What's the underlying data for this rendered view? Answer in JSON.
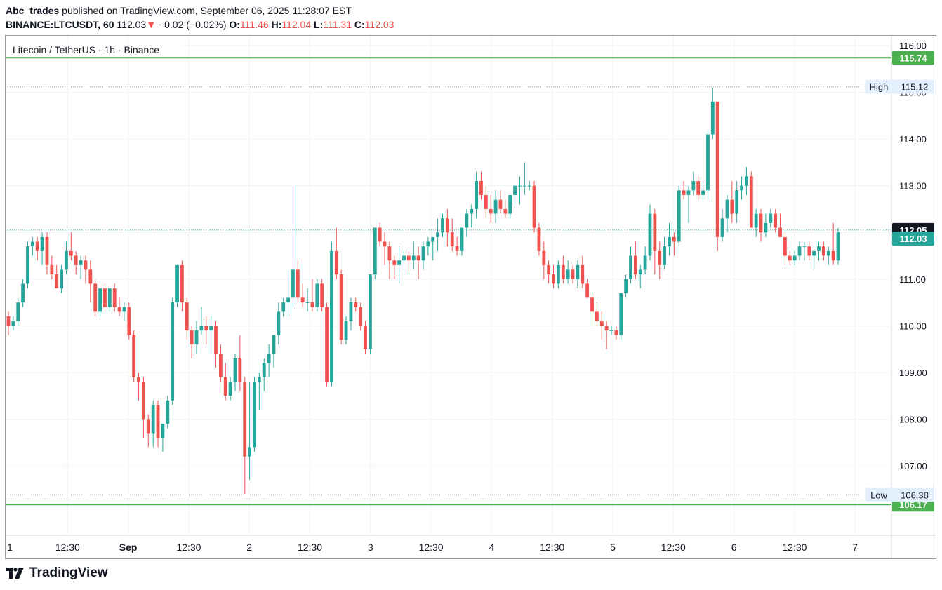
{
  "header": {
    "user": "Abc_trades",
    "published_text": "published on TradingView.com, September 06, 2025 11:28:07 EST",
    "symbol": "BINANCE:LTCUSDT, 60",
    "last": "112.03",
    "arrow": "▼",
    "change": "−0.02 (−0.02%)",
    "o_label": "O:",
    "o_value": "111.46",
    "h_label": "H:",
    "h_value": "112.04",
    "l_label": "L:",
    "l_value": "111.31",
    "c_label": "C:",
    "c_value": "112.03"
  },
  "footer": {
    "brand": "TradingView"
  },
  "colors": {
    "up": "#26a69a",
    "down": "#ef5350",
    "level": "#4caf50",
    "current": "#131722",
    "high_low_bg": "#e3effd"
  },
  "chart_data": {
    "type": "candlestick",
    "title": "Litecoin / TetherUS · 1h · Binance",
    "ylim": [
      106.0,
      116.2
    ],
    "y_ticks": [
      "116.00",
      "115.00",
      "114.00",
      "113.00",
      "112.00",
      "111.00",
      "110.00",
      "109.00",
      "108.00",
      "107.00"
    ],
    "x_ticks": [
      "1",
      "12:30",
      "Sep",
      "12:30",
      "2",
      "12:30",
      "3",
      "12:30",
      "4",
      "12:30",
      "5",
      "12:30",
      "6",
      "12:30",
      "7"
    ],
    "levels": [
      {
        "name": "resistance",
        "value": 115.74,
        "label": "115.74"
      },
      {
        "name": "support",
        "value": 106.17,
        "label": "106.17"
      }
    ],
    "high": {
      "label": "High",
      "value": 115.12,
      "text": "115.12"
    },
    "low": {
      "label": "Low",
      "value": 106.38,
      "text": "106.38"
    },
    "current_price": {
      "value": 112.05,
      "text": "112.05"
    },
    "last_price": {
      "value": 112.03,
      "text": "112.03"
    },
    "candles": [
      [
        110.2,
        110.3,
        109.8,
        110.0
      ],
      [
        110.0,
        110.2,
        109.9,
        110.1
      ],
      [
        110.1,
        110.6,
        110.0,
        110.5
      ],
      [
        110.5,
        111.0,
        110.4,
        110.9
      ],
      [
        110.9,
        111.8,
        110.8,
        111.7
      ],
      [
        111.7,
        111.9,
        111.5,
        111.8
      ],
      [
        111.8,
        111.9,
        111.4,
        111.6
      ],
      [
        111.6,
        112.0,
        111.3,
        111.9
      ],
      [
        111.9,
        112.0,
        111.1,
        111.3
      ],
      [
        111.3,
        111.5,
        111.0,
        111.1
      ],
      [
        111.1,
        111.3,
        110.8,
        110.8
      ],
      [
        110.8,
        111.3,
        110.7,
        111.2
      ],
      [
        111.2,
        111.8,
        111.1,
        111.6
      ],
      [
        111.6,
        112.0,
        111.4,
        111.5
      ],
      [
        111.5,
        111.6,
        111.1,
        111.3
      ],
      [
        111.3,
        111.5,
        111.0,
        111.4
      ],
      [
        111.4,
        111.5,
        110.9,
        111.2
      ],
      [
        111.2,
        111.4,
        110.5,
        110.9
      ],
      [
        110.9,
        111.0,
        110.2,
        110.3
      ],
      [
        110.3,
        110.8,
        110.2,
        110.8
      ],
      [
        110.8,
        110.9,
        110.3,
        110.4
      ],
      [
        110.4,
        110.8,
        110.3,
        110.8
      ],
      [
        110.8,
        110.9,
        110.3,
        110.4
      ],
      [
        110.4,
        110.6,
        110.2,
        110.3
      ],
      [
        110.3,
        110.5,
        110.1,
        110.4
      ],
      [
        110.4,
        110.5,
        109.7,
        109.8
      ],
      [
        109.8,
        109.9,
        108.8,
        108.9
      ],
      [
        108.9,
        109.0,
        108.4,
        108.8
      ],
      [
        108.8,
        108.9,
        107.6,
        108.0
      ],
      [
        108.0,
        108.1,
        107.4,
        107.7
      ],
      [
        107.7,
        108.4,
        107.4,
        108.3
      ],
      [
        108.3,
        108.4,
        107.4,
        107.6
      ],
      [
        107.6,
        107.8,
        107.3,
        107.9
      ],
      [
        107.9,
        108.5,
        107.8,
        108.4
      ],
      [
        108.4,
        110.6,
        108.3,
        110.5
      ],
      [
        110.5,
        111.3,
        110.4,
        111.3
      ],
      [
        111.3,
        111.4,
        110.3,
        110.5
      ],
      [
        110.5,
        110.6,
        109.7,
        109.9
      ],
      [
        109.9,
        110.0,
        109.3,
        109.6
      ],
      [
        109.6,
        110.1,
        109.4,
        109.9
      ],
      [
        109.9,
        110.4,
        109.8,
        110.0
      ],
      [
        110.0,
        110.2,
        109.6,
        109.9
      ],
      [
        109.9,
        110.2,
        109.4,
        110.0
      ],
      [
        110.0,
        110.1,
        109.1,
        109.4
      ],
      [
        109.4,
        109.6,
        108.8,
        108.9
      ],
      [
        108.9,
        109.2,
        108.4,
        108.5
      ],
      [
        108.5,
        108.9,
        108.4,
        108.8
      ],
      [
        108.8,
        109.4,
        108.6,
        109.3
      ],
      [
        109.3,
        109.8,
        108.6,
        108.8
      ],
      [
        108.8,
        108.9,
        106.4,
        107.2
      ],
      [
        107.2,
        108.8,
        106.7,
        107.4
      ],
      [
        107.4,
        108.9,
        107.3,
        108.8
      ],
      [
        108.8,
        109.0,
        108.2,
        108.9
      ],
      [
        108.9,
        109.3,
        108.6,
        109.2
      ],
      [
        109.2,
        109.6,
        108.9,
        109.4
      ],
      [
        109.4,
        109.8,
        109.1,
        109.8
      ],
      [
        109.8,
        110.5,
        109.6,
        110.3
      ],
      [
        110.3,
        110.6,
        110.2,
        110.5
      ],
      [
        110.5,
        111.2,
        110.2,
        110.6
      ],
      [
        110.6,
        113.0,
        110.4,
        111.2
      ],
      [
        111.2,
        111.4,
        110.5,
        110.6
      ],
      [
        110.6,
        110.9,
        110.4,
        110.5
      ],
      [
        110.5,
        110.8,
        110.3,
        110.5
      ],
      [
        110.5,
        111.0,
        110.3,
        110.4
      ],
      [
        110.4,
        111.0,
        110.3,
        110.9
      ],
      [
        110.9,
        111.0,
        110.3,
        110.4
      ],
      [
        110.4,
        110.5,
        108.7,
        108.8
      ],
      [
        108.8,
        111.8,
        108.7,
        111.6
      ],
      [
        111.6,
        112.1,
        111.0,
        111.1
      ],
      [
        111.1,
        111.2,
        109.6,
        109.7
      ],
      [
        109.7,
        110.2,
        109.6,
        110.1
      ],
      [
        110.1,
        110.6,
        109.9,
        110.5
      ],
      [
        110.5,
        110.6,
        110.3,
        110.4
      ],
      [
        110.4,
        110.5,
        109.9,
        110.0
      ],
      [
        110.0,
        110.1,
        109.4,
        109.5
      ],
      [
        109.5,
        111.1,
        109.4,
        111.1
      ],
      [
        111.1,
        112.1,
        111.0,
        112.1
      ],
      [
        112.1,
        112.2,
        111.7,
        111.8
      ],
      [
        111.8,
        112.0,
        111.3,
        111.7
      ],
      [
        111.7,
        111.8,
        111.0,
        111.4
      ],
      [
        111.4,
        111.5,
        111.0,
        111.3
      ],
      [
        111.3,
        111.7,
        110.9,
        111.4
      ],
      [
        111.4,
        111.6,
        111.2,
        111.5
      ],
      [
        111.5,
        111.6,
        111.1,
        111.4
      ],
      [
        111.4,
        111.8,
        111.2,
        111.5
      ],
      [
        111.5,
        111.7,
        111.0,
        111.4
      ],
      [
        111.4,
        111.8,
        111.2,
        111.7
      ],
      [
        111.7,
        111.9,
        111.5,
        111.8
      ],
      [
        111.8,
        111.9,
        111.4,
        111.9
      ],
      [
        111.9,
        112.3,
        111.6,
        112.0
      ],
      [
        112.0,
        112.4,
        111.9,
        112.3
      ],
      [
        112.3,
        112.5,
        111.7,
        112.0
      ],
      [
        112.0,
        112.3,
        111.6,
        111.7
      ],
      [
        111.7,
        111.9,
        111.5,
        111.6
      ],
      [
        111.6,
        112.1,
        111.5,
        112.1
      ],
      [
        112.1,
        112.5,
        111.9,
        112.4
      ],
      [
        112.4,
        112.6,
        112.1,
        112.5
      ],
      [
        112.5,
        113.3,
        112.3,
        113.1
      ],
      [
        113.1,
        113.3,
        112.7,
        112.8
      ],
      [
        112.8,
        113.0,
        112.3,
        112.5
      ],
      [
        112.5,
        112.8,
        112.2,
        112.4
      ],
      [
        112.4,
        112.9,
        112.2,
        112.7
      ],
      [
        112.7,
        112.9,
        112.4,
        112.5
      ],
      [
        112.5,
        112.7,
        112.3,
        112.4
      ],
      [
        112.4,
        112.8,
        112.3,
        112.8
      ],
      [
        112.8,
        113.0,
        112.6,
        113.0
      ],
      [
        113.0,
        113.2,
        112.6,
        113.0
      ],
      [
        113.0,
        113.5,
        112.8,
        113.0
      ],
      [
        113.0,
        113.1,
        112.9,
        113.0
      ],
      [
        113.0,
        113.1,
        112.0,
        112.1
      ],
      [
        112.1,
        112.2,
        111.5,
        111.6
      ],
      [
        111.6,
        111.8,
        111.0,
        111.3
      ],
      [
        111.3,
        111.4,
        110.9,
        111.1
      ],
      [
        111.1,
        111.3,
        110.8,
        110.9
      ],
      [
        110.9,
        111.4,
        110.8,
        111.3
      ],
      [
        111.3,
        111.5,
        110.9,
        111.0
      ],
      [
        111.0,
        111.4,
        110.9,
        111.2
      ],
      [
        111.2,
        111.3,
        110.9,
        111.0
      ],
      [
        111.0,
        111.4,
        110.8,
        111.3
      ],
      [
        111.3,
        111.5,
        110.8,
        110.9
      ],
      [
        110.9,
        111.0,
        110.6,
        110.6
      ],
      [
        110.6,
        110.7,
        110.0,
        110.3
      ],
      [
        110.3,
        110.5,
        110.0,
        110.1
      ],
      [
        110.1,
        110.3,
        109.7,
        110.0
      ],
      [
        110.0,
        110.1,
        109.5,
        109.9
      ],
      [
        109.9,
        110.0,
        109.8,
        109.9
      ],
      [
        109.9,
        110.0,
        109.7,
        109.8
      ],
      [
        109.8,
        110.7,
        109.7,
        110.7
      ],
      [
        110.7,
        111.1,
        110.6,
        111.0
      ],
      [
        111.0,
        111.7,
        110.9,
        111.5
      ],
      [
        111.5,
        111.8,
        111.0,
        111.1
      ],
      [
        111.1,
        111.3,
        110.8,
        111.2
      ],
      [
        111.2,
        111.7,
        111.1,
        111.5
      ],
      [
        111.5,
        112.6,
        111.4,
        112.4
      ],
      [
        112.4,
        112.5,
        111.1,
        111.6
      ],
      [
        111.6,
        111.8,
        111.0,
        111.3
      ],
      [
        111.3,
        111.9,
        111.2,
        111.7
      ],
      [
        111.7,
        112.2,
        111.5,
        111.9
      ],
      [
        111.9,
        112.0,
        111.5,
        111.8
      ],
      [
        111.8,
        113.0,
        111.7,
        112.9
      ],
      [
        112.9,
        113.1,
        112.7,
        112.8
      ],
      [
        112.8,
        113.0,
        112.2,
        112.9
      ],
      [
        112.9,
        113.3,
        112.8,
        113.1
      ],
      [
        113.1,
        113.2,
        112.7,
        112.8
      ],
      [
        112.8,
        113.1,
        112.7,
        112.9
      ],
      [
        112.9,
        114.2,
        112.7,
        114.1
      ],
      [
        114.1,
        115.1,
        114.0,
        114.8
      ],
      [
        114.8,
        114.8,
        111.6,
        111.9
      ],
      [
        111.9,
        112.5,
        111.8,
        112.3
      ],
      [
        112.3,
        112.8,
        112.0,
        112.7
      ],
      [
        112.7,
        113.1,
        112.2,
        112.4
      ],
      [
        112.4,
        113.1,
        112.2,
        112.9
      ],
      [
        112.9,
        113.2,
        112.7,
        113.0
      ],
      [
        113.0,
        113.4,
        112.8,
        113.2
      ],
      [
        113.2,
        113.3,
        112.1,
        112.1
      ],
      [
        112.1,
        112.5,
        111.9,
        112.4
      ],
      [
        112.4,
        112.5,
        111.8,
        112.0
      ],
      [
        112.0,
        112.4,
        111.9,
        112.2
      ],
      [
        112.2,
        112.5,
        112.1,
        112.4
      ],
      [
        112.4,
        112.5,
        112.0,
        112.1
      ],
      [
        112.1,
        112.4,
        111.9,
        111.9
      ],
      [
        111.9,
        112.0,
        111.3,
        111.5
      ],
      [
        111.5,
        111.6,
        111.3,
        111.4
      ],
      [
        111.4,
        111.6,
        111.3,
        111.5
      ],
      [
        111.5,
        111.8,
        111.4,
        111.7
      ],
      [
        111.7,
        111.8,
        111.4,
        111.7
      ],
      [
        111.7,
        111.8,
        111.4,
        111.5
      ],
      [
        111.5,
        111.7,
        111.2,
        111.6
      ],
      [
        111.6,
        111.8,
        111.4,
        111.7
      ],
      [
        111.7,
        111.8,
        111.4,
        111.5
      ],
      [
        111.5,
        111.7,
        111.3,
        111.6
      ],
      [
        111.6,
        112.2,
        111.3,
        111.4
      ],
      [
        111.4,
        112.1,
        111.3,
        112.0
      ]
    ]
  }
}
